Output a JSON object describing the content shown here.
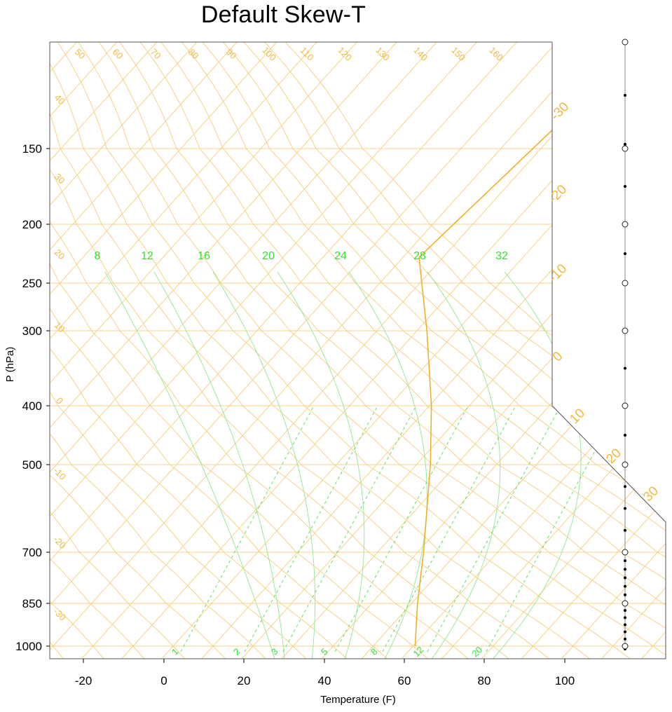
{
  "chart_data": {
    "type": "line",
    "title": "Default Skew-T",
    "xlabel": "Temperature (F)",
    "ylabel": "P (hPa)",
    "xlim": [
      -28,
      126
    ],
    "x_ticks": [
      "-20",
      "0",
      "20",
      "40",
      "60",
      "80",
      "100"
    ],
    "y_ticks": [
      "150",
      "200",
      "250",
      "300",
      "400",
      "500",
      "700",
      "850",
      "1000"
    ],
    "isotherm_labels": [
      "50",
      "60",
      "70",
      "80",
      "90",
      "100",
      "110",
      "120",
      "130",
      "140",
      "150",
      "160"
    ],
    "left_isotherm_labels": [
      "40",
      "30",
      "20",
      "10",
      "0",
      "-10",
      "-20",
      "-30"
    ],
    "right_temperature_labels": [
      "-30",
      "-20",
      "-10",
      "0",
      "10",
      "20",
      "30"
    ],
    "moist_adiabat_labels": [
      "8",
      "12",
      "16",
      "20",
      "24",
      "28",
      "32"
    ],
    "mixing_ratio_labels": [
      "1",
      "2",
      "3",
      "5",
      "8",
      "12",
      "20"
    ],
    "series": [
      {
        "type": "line",
        "points": [
          {
            "p": 1000,
            "t": 60.5
          },
          {
            "p": 850,
            "t": 51.5
          },
          {
            "p": 700,
            "t": 41.5
          },
          {
            "p": 500,
            "t": 23.5
          },
          {
            "p": 400,
            "t": 10.5
          },
          {
            "p": 300,
            "t": -7.5
          },
          {
            "p": 250,
            "t": -19.5
          },
          {
            "p": 228,
            "t": -26.0
          },
          {
            "p": 150,
            "t": -22.0
          },
          {
            "p": 100,
            "t": -18.0
          }
        ]
      }
    ],
    "wind_pressure_levels": [
      100,
      125,
      148,
      150,
      175,
      200,
      225,
      250,
      300,
      350,
      400,
      450,
      500,
      550,
      600,
      650,
      700,
      725,
      750,
      775,
      800,
      825,
      850,
      875,
      900,
      925,
      950,
      975,
      1000,
      1010
    ],
    "open_wind_markers": [
      100,
      150,
      200,
      250,
      300,
      400,
      500,
      700,
      850,
      1000
    ],
    "colors": {
      "background": "#ffffff",
      "grid_orange": "#f5b942",
      "grid_orange_light": "#f8d184",
      "green": "#33e033",
      "green_light": "#9ae99a",
      "profile": "#f2b02a",
      "frame": "#555555"
    }
  }
}
